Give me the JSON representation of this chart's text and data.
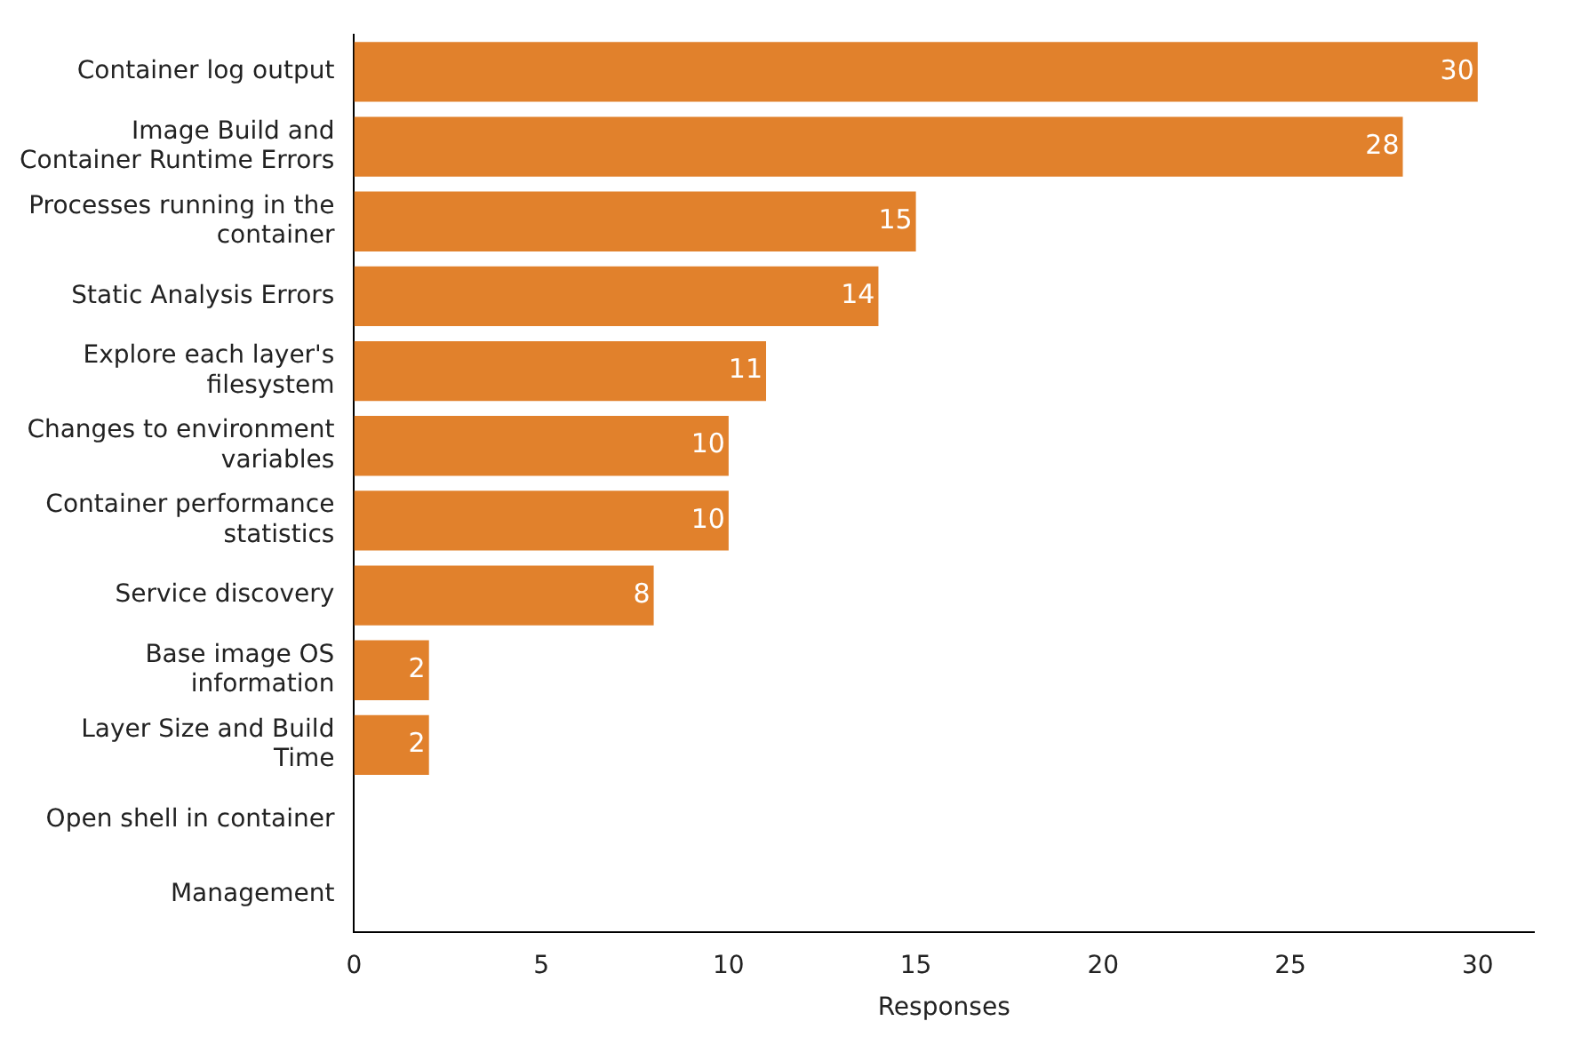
{
  "chart_data": {
    "type": "bar",
    "orientation": "horizontal",
    "xlabel": "Responses",
    "categories": [
      "Container log output",
      "Image Build and\nContainer Runtime Errors",
      "Processes running in the\ncontainer",
      "Static Analysis Errors",
      "Explore each layer's\nfilesystem",
      "Changes to environment\nvariables",
      "Container performance\nstatistics",
      "Service discovery",
      "Base image OS\ninformation",
      "Layer Size and Build\nTime",
      "Open shell in container",
      "Management"
    ],
    "values": [
      30,
      28,
      15,
      14,
      11,
      10,
      10,
      8,
      2,
      2,
      0,
      0
    ],
    "value_labels": [
      "30",
      "28",
      "15",
      "14",
      "11",
      "10",
      "10",
      "8",
      "2",
      "2",
      null,
      null
    ],
    "color": "#e1812c",
    "xlim": [
      0,
      31.5
    ],
    "xticks": [
      0,
      5,
      10,
      15,
      20,
      25,
      30
    ],
    "grid": false,
    "legend": false
  }
}
